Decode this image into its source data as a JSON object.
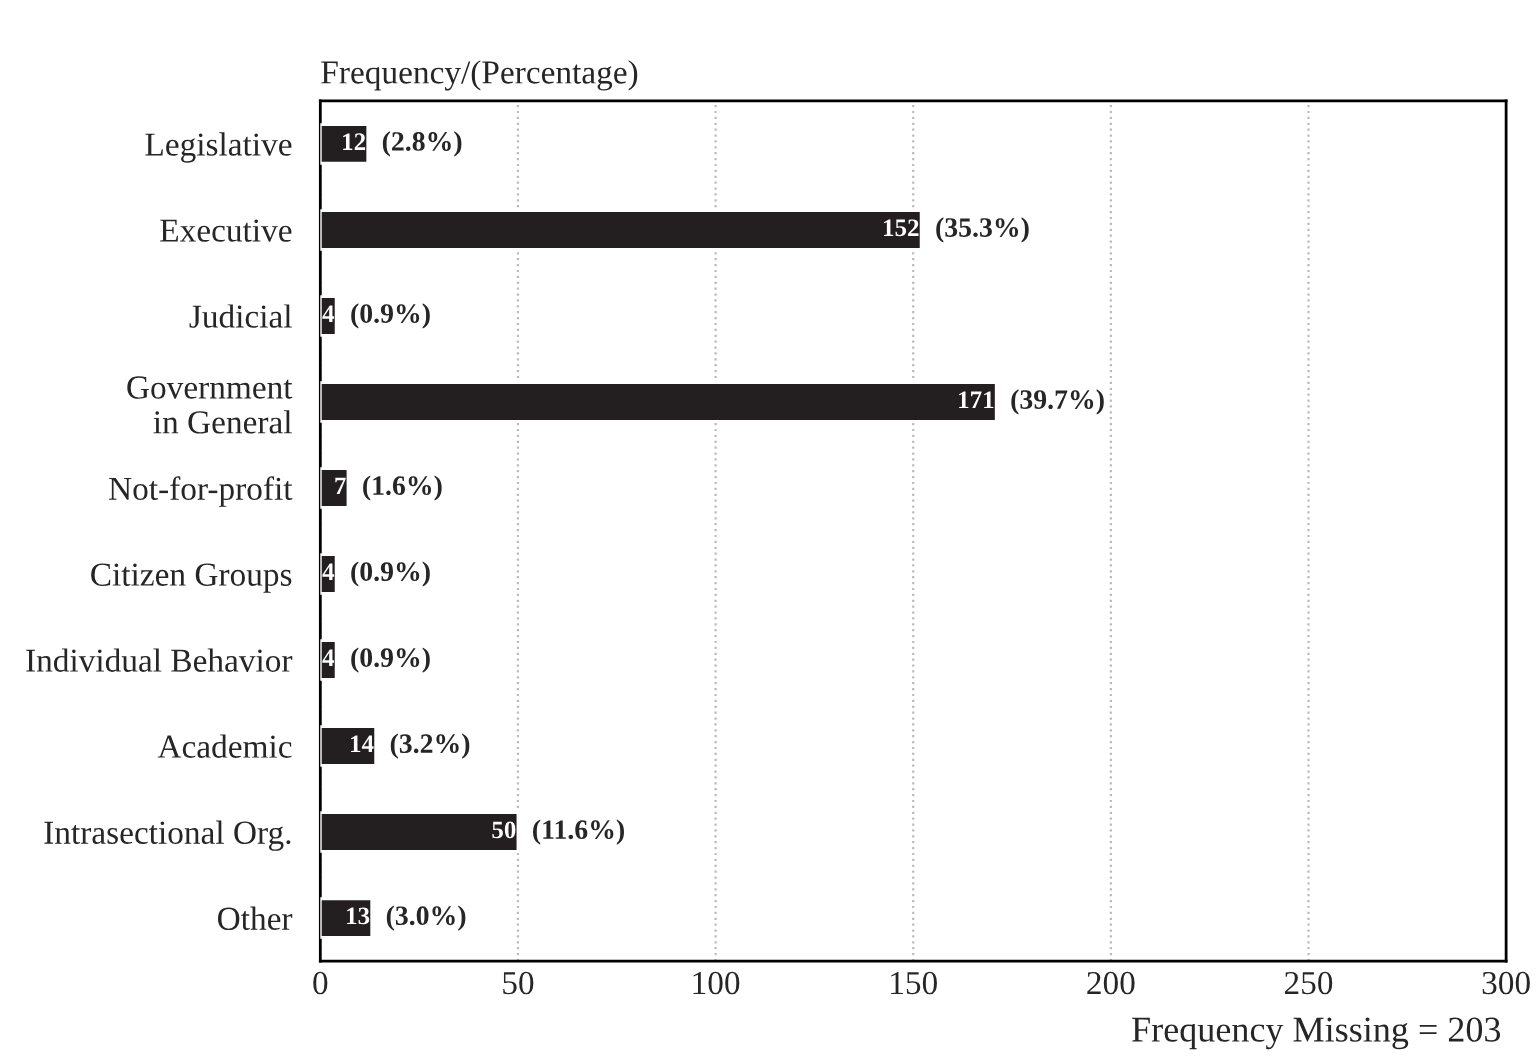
{
  "chart_data": {
    "type": "bar",
    "orientation": "horizontal",
    "xlabel": "Frequency/(Percentage)",
    "categories": [
      "Legislative",
      "Executive",
      "Judicial",
      "Government\nin General",
      "Not-for-profit",
      "Citizen Groups",
      "Individual Behavior",
      "Academic",
      "Intrasectional Org.",
      "Other"
    ],
    "values": [
      12,
      152,
      4,
      171,
      7,
      4,
      4,
      14,
      50,
      13
    ],
    "color": "#231f20",
    "value_labels": [
      "12",
      "152",
      "4",
      "171",
      "7",
      "4",
      "4",
      "14",
      "50",
      "13"
    ],
    "xlim": [
      0,
      300
    ],
    "xticks": [
      0,
      50,
      100,
      150,
      200,
      250,
      300
    ],
    "grid": "x",
    "annotations": [
      {
        "text": "(2.8%)",
        "x": 12,
        "y": "Legislative"
      },
      {
        "text": "(35.3%)",
        "x": 152,
        "y": "Executive"
      },
      {
        "text": "(0.9%)",
        "x": 4,
        "y": "Judicial"
      },
      {
        "text": "(39.7%)",
        "x": 171,
        "y": "Government\nin General"
      },
      {
        "text": "(1.6%)",
        "x": 7,
        "y": "Not-for-profit"
      },
      {
        "text": "(0.9%)",
        "x": 4,
        "y": "Citizen Groups"
      },
      {
        "text": "(0.9%)",
        "x": 4,
        "y": "Individual Behavior"
      },
      {
        "text": "(3.2%)",
        "x": 14,
        "y": "Academic"
      },
      {
        "text": "(11.6%)",
        "x": 50,
        "y": "Intrasectional Org."
      },
      {
        "text": "(3.0%)",
        "x": 13,
        "y": "Other"
      },
      "Frequency Missing = 203"
    ]
  }
}
